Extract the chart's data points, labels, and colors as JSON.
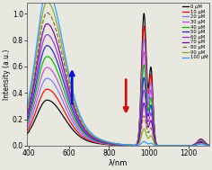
{
  "xlabel": "λ/nm",
  "ylabel": "Intensity (a.u.)",
  "xlim": [
    390,
    1300
  ],
  "ylim": [
    0,
    1.08
  ],
  "x_ticks": [
    400,
    600,
    800,
    1000,
    1200
  ],
  "concentrations": [
    0,
    10,
    20,
    30,
    40,
    50,
    60,
    70,
    80,
    90,
    100
  ],
  "colors": [
    "#000000",
    "#ff0000",
    "#7777ff",
    "#cc44dd",
    "#00bb00",
    "#2222cc",
    "#9933cc",
    "#7700aa",
    "#886633",
    "#88aa22",
    "#3399ff"
  ],
  "background_color": "#e8e8e0"
}
